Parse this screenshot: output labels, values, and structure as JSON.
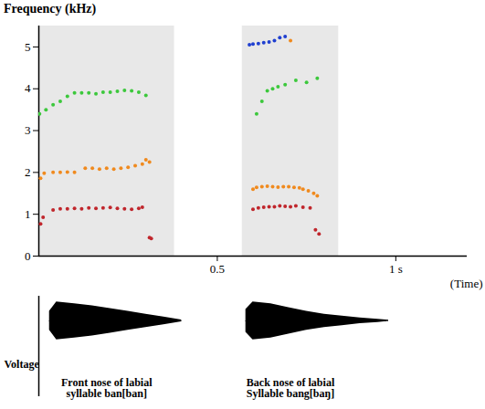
{
  "chart_data": {
    "type": "scatter",
    "ylabel": "Frequency (kHz)",
    "xlabel": "(Time)",
    "xlim": [
      0,
      1.2
    ],
    "xticks": [
      0.5,
      {
        "value": 1,
        "label": "1 s"
      }
    ],
    "ylim": [
      0,
      5.5
    ],
    "yticks": [
      0,
      1,
      2,
      3,
      4,
      5
    ],
    "marker": "circle",
    "segments": [
      {
        "label": "Front nose of labial syllable ban[ban]",
        "start": 0,
        "end": 0.38
      },
      {
        "label": "Back nose of labial Syllable bang[baŋ]",
        "start": 0.57,
        "end": 0.84
      }
    ],
    "series": [
      {
        "color": "#c0262c",
        "x": [
          0.005,
          0.012,
          0.04,
          0.06,
          0.08,
          0.1,
          0.12,
          0.14,
          0.16,
          0.18,
          0.2,
          0.22,
          0.24,
          0.26,
          0.28,
          0.29,
          0.31,
          0.315
        ],
        "values": [
          0.77,
          0.93,
          1.1,
          1.13,
          1.13,
          1.14,
          1.13,
          1.15,
          1.14,
          1.15,
          1.16,
          1.14,
          1.13,
          1.12,
          1.14,
          1.17,
          0.44,
          0.42
        ]
      },
      {
        "color": "#f08a1e",
        "x": [
          0.005,
          0.015,
          0.04,
          0.06,
          0.08,
          0.1,
          0.13,
          0.15,
          0.17,
          0.19,
          0.21,
          0.23,
          0.25,
          0.27,
          0.29,
          0.3,
          0.31
        ],
        "values": [
          1.86,
          1.98,
          2.0,
          2.0,
          2.01,
          2.0,
          2.1,
          2.1,
          2.08,
          2.1,
          2.08,
          2.1,
          2.12,
          2.16,
          2.2,
          2.3,
          2.25
        ]
      },
      {
        "color": "#3cc83c",
        "x": [
          0.002,
          0.02,
          0.04,
          0.06,
          0.08,
          0.1,
          0.12,
          0.14,
          0.16,
          0.18,
          0.2,
          0.22,
          0.24,
          0.26,
          0.28,
          0.3
        ],
        "values": [
          3.4,
          3.5,
          3.62,
          3.7,
          3.82,
          3.9,
          3.9,
          3.9,
          3.88,
          3.92,
          3.92,
          3.94,
          3.96,
          3.95,
          3.92,
          3.84
        ]
      },
      {
        "color": "#1f3fd0",
        "x": [
          0.59,
          0.6,
          0.615,
          0.63,
          0.645,
          0.66,
          0.675,
          0.69
        ],
        "values": [
          5.05,
          5.07,
          5.08,
          5.1,
          5.12,
          5.15,
          5.22,
          5.25
        ]
      },
      {
        "color": "#3cc83c",
        "x": [
          0.61,
          0.625,
          0.64,
          0.655,
          0.67,
          0.69,
          0.72,
          0.75,
          0.78
        ],
        "values": [
          3.4,
          3.7,
          3.95,
          4.0,
          4.05,
          4.1,
          4.2,
          4.15,
          4.25
        ]
      },
      {
        "color": "#f08a1e",
        "x": [
          0.6,
          0.61,
          0.625,
          0.64,
          0.655,
          0.67,
          0.685,
          0.7,
          0.715,
          0.73,
          0.74,
          0.755,
          0.77,
          0.78,
          0.705
        ],
        "values": [
          1.6,
          1.64,
          1.66,
          1.67,
          1.66,
          1.65,
          1.66,
          1.66,
          1.64,
          1.63,
          1.6,
          1.56,
          1.5,
          1.44,
          5.15
        ]
      },
      {
        "color": "#c0262c",
        "x": [
          0.6,
          0.615,
          0.63,
          0.645,
          0.66,
          0.675,
          0.69,
          0.705,
          0.72,
          0.74,
          0.76,
          0.775,
          0.785
        ],
        "values": [
          1.12,
          1.15,
          1.17,
          1.18,
          1.18,
          1.2,
          1.19,
          1.18,
          1.2,
          1.17,
          1.15,
          0.63,
          0.53
        ]
      }
    ],
    "voltage": {
      "label": "Voltage",
      "envelopes": [
        {
          "x": [
            0.03,
            0.05,
            0.1,
            0.15,
            0.2,
            0.25,
            0.3,
            0.35,
            0.4
          ],
          "values": [
            0.5,
            1,
            0.9,
            0.8,
            0.65,
            0.5,
            0.35,
            0.2,
            0.05
          ]
        },
        {
          "x": [
            0.58,
            0.6,
            0.65,
            0.7,
            0.75,
            0.8,
            0.85,
            0.9,
            0.95,
            0.98
          ],
          "values": [
            0.6,
            1,
            0.9,
            0.7,
            0.5,
            0.35,
            0.25,
            0.15,
            0.08,
            0.03
          ]
        }
      ]
    }
  }
}
